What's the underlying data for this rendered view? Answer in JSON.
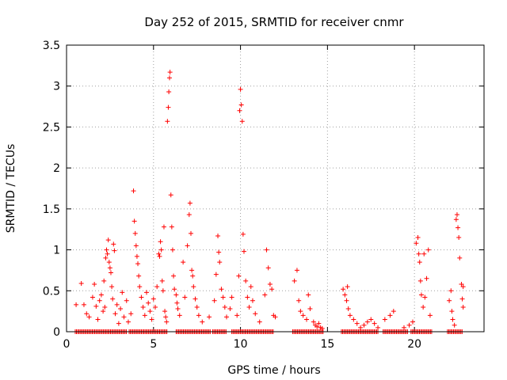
{
  "chart_data": {
    "type": "scatter",
    "title": "Day 252 of 2015, SRMTID for receiver cnmr",
    "xlabel": "GPS time / hours",
    "ylabel": "SRMTID / TECUs",
    "xlim": [
      0,
      24
    ],
    "ylim": [
      0,
      3.5
    ],
    "x_ticks": [
      0,
      5,
      10,
      15,
      20
    ],
    "y_ticks": [
      0,
      0.5,
      1,
      1.5,
      2,
      2.5,
      3,
      3.5
    ],
    "x_tick_labels": [
      "0",
      "5",
      "10",
      "15",
      "20"
    ],
    "y_tick_labels": [
      "0",
      "0.5",
      "1",
      "1.5",
      "2",
      "2.5",
      "3",
      "3.5"
    ],
    "grid": true,
    "marker": "plus",
    "color": "#ff0000",
    "series": [
      {
        "name": "SRMTID",
        "points": [
          [
            0.55,
            0.33
          ],
          [
            0.85,
            0.59
          ],
          [
            1.0,
            0.33
          ],
          [
            1.15,
            0.22
          ],
          [
            1.3,
            0.18
          ],
          [
            1.5,
            0.42
          ],
          [
            1.6,
            0.58
          ],
          [
            1.7,
            0.31
          ],
          [
            1.8,
            0.15
          ],
          [
            1.9,
            0.38
          ],
          [
            2.0,
            0.45
          ],
          [
            2.1,
            0.25
          ],
          [
            2.15,
            0.62
          ],
          [
            2.2,
            0.3
          ],
          [
            2.25,
            0.9
          ],
          [
            2.3,
            1.0
          ],
          [
            2.35,
            0.95
          ],
          [
            2.4,
            1.12
          ],
          [
            2.45,
            0.85
          ],
          [
            2.5,
            0.78
          ],
          [
            2.55,
            0.72
          ],
          [
            2.6,
            0.55
          ],
          [
            2.65,
            0.4
          ],
          [
            2.7,
            1.07
          ],
          [
            2.75,
            0.99
          ],
          [
            2.8,
            0.22
          ],
          [
            2.9,
            0.33
          ],
          [
            3.0,
            0.1
          ],
          [
            3.1,
            0.28
          ],
          [
            3.2,
            0.48
          ],
          [
            3.3,
            0.18
          ],
          [
            3.45,
            0.38
          ],
          [
            3.55,
            0.12
          ],
          [
            3.7,
            0.22
          ],
          [
            3.85,
            1.72
          ],
          [
            3.9,
            1.35
          ],
          [
            3.95,
            1.2
          ],
          [
            4.0,
            1.05
          ],
          [
            4.05,
            0.92
          ],
          [
            4.1,
            0.83
          ],
          [
            4.15,
            0.68
          ],
          [
            4.2,
            0.55
          ],
          [
            4.3,
            0.42
          ],
          [
            4.4,
            0.3
          ],
          [
            4.5,
            0.2
          ],
          [
            4.6,
            0.48
          ],
          [
            4.7,
            0.35
          ],
          [
            4.8,
            0.25
          ],
          [
            4.9,
            0.15
          ],
          [
            5.0,
            0.4
          ],
          [
            5.1,
            0.3
          ],
          [
            5.2,
            0.55
          ],
          [
            5.3,
            0.95
          ],
          [
            5.35,
            0.92
          ],
          [
            5.4,
            1.1
          ],
          [
            5.45,
            1.0
          ],
          [
            5.5,
            0.62
          ],
          [
            5.55,
            0.5
          ],
          [
            5.6,
            1.28
          ],
          [
            5.65,
            0.25
          ],
          [
            5.7,
            0.18
          ],
          [
            5.75,
            0.12
          ],
          [
            5.8,
            2.57
          ],
          [
            5.85,
            2.74
          ],
          [
            5.88,
            2.93
          ],
          [
            5.92,
            3.1
          ],
          [
            5.95,
            3.17
          ],
          [
            6.0,
            1.67
          ],
          [
            6.05,
            1.28
          ],
          [
            6.1,
            1.0
          ],
          [
            6.15,
            0.68
          ],
          [
            6.2,
            0.52
          ],
          [
            6.3,
            0.45
          ],
          [
            6.35,
            0.35
          ],
          [
            6.4,
            0.28
          ],
          [
            6.5,
            0.2
          ],
          [
            6.7,
            0.85
          ],
          [
            6.8,
            0.42
          ],
          [
            6.95,
            1.05
          ],
          [
            7.05,
            1.43
          ],
          [
            7.1,
            1.57
          ],
          [
            7.15,
            1.2
          ],
          [
            7.2,
            0.75
          ],
          [
            7.25,
            0.68
          ],
          [
            7.3,
            0.55
          ],
          [
            7.4,
            0.4
          ],
          [
            7.5,
            0.3
          ],
          [
            7.6,
            0.2
          ],
          [
            7.8,
            0.12
          ],
          [
            8.2,
            0.18
          ],
          [
            8.5,
            0.38
          ],
          [
            8.6,
            0.7
          ],
          [
            8.7,
            1.17
          ],
          [
            8.75,
            0.97
          ],
          [
            8.8,
            0.85
          ],
          [
            8.9,
            0.52
          ],
          [
            9.0,
            0.42
          ],
          [
            9.1,
            0.3
          ],
          [
            9.2,
            0.18
          ],
          [
            9.4,
            0.28
          ],
          [
            9.5,
            0.42
          ],
          [
            9.8,
            0.2
          ],
          [
            9.9,
            0.68
          ],
          [
            9.95,
            2.7
          ],
          [
            10.0,
            2.96
          ],
          [
            10.05,
            2.77
          ],
          [
            10.1,
            2.57
          ],
          [
            10.15,
            1.19
          ],
          [
            10.2,
            0.98
          ],
          [
            10.3,
            0.62
          ],
          [
            10.4,
            0.42
          ],
          [
            10.5,
            0.3
          ],
          [
            10.6,
            0.55
          ],
          [
            10.7,
            0.38
          ],
          [
            10.85,
            0.22
          ],
          [
            11.1,
            0.12
          ],
          [
            11.4,
            0.45
          ],
          [
            11.5,
            1.0
          ],
          [
            11.6,
            0.78
          ],
          [
            11.7,
            0.58
          ],
          [
            11.8,
            0.52
          ],
          [
            11.9,
            0.2
          ],
          [
            12.0,
            0.18
          ],
          [
            13.1,
            0.62
          ],
          [
            13.25,
            0.75
          ],
          [
            13.35,
            0.38
          ],
          [
            13.45,
            0.25
          ],
          [
            13.6,
            0.2
          ],
          [
            13.8,
            0.15
          ],
          [
            13.9,
            0.45
          ],
          [
            14.0,
            0.28
          ],
          [
            14.2,
            0.12
          ],
          [
            14.3,
            0.08
          ],
          [
            14.4,
            0.06
          ],
          [
            14.5,
            0.1
          ],
          [
            14.6,
            0.05
          ],
          [
            14.7,
            0.04
          ],
          [
            15.9,
            0.52
          ],
          [
            16.0,
            0.45
          ],
          [
            16.1,
            0.38
          ],
          [
            16.15,
            0.55
          ],
          [
            16.2,
            0.28
          ],
          [
            16.3,
            0.2
          ],
          [
            16.5,
            0.15
          ],
          [
            16.7,
            0.1
          ],
          [
            16.9,
            0.05
          ],
          [
            17.1,
            0.08
          ],
          [
            17.3,
            0.12
          ],
          [
            17.5,
            0.15
          ],
          [
            17.7,
            0.1
          ],
          [
            17.9,
            0.05
          ],
          [
            18.3,
            0.15
          ],
          [
            18.6,
            0.2
          ],
          [
            18.8,
            0.25
          ],
          [
            19.4,
            0.05
          ],
          [
            19.7,
            0.08
          ],
          [
            19.9,
            0.12
          ],
          [
            20.1,
            1.08
          ],
          [
            20.2,
            1.15
          ],
          [
            20.25,
            0.95
          ],
          [
            20.3,
            0.85
          ],
          [
            20.35,
            0.62
          ],
          [
            20.4,
            0.45
          ],
          [
            20.5,
            0.3
          ],
          [
            20.55,
            0.95
          ],
          [
            20.6,
            0.42
          ],
          [
            20.7,
            0.65
          ],
          [
            20.8,
            1.0
          ],
          [
            20.9,
            0.2
          ],
          [
            22.0,
            0.38
          ],
          [
            22.1,
            0.5
          ],
          [
            22.15,
            0.25
          ],
          [
            22.2,
            0.15
          ],
          [
            22.3,
            0.08
          ],
          [
            22.4,
            1.37
          ],
          [
            22.45,
            1.43
          ],
          [
            22.5,
            1.27
          ],
          [
            22.55,
            1.15
          ],
          [
            22.6,
            0.9
          ],
          [
            22.7,
            0.58
          ],
          [
            22.75,
            0.4
          ],
          [
            22.8,
            0.3
          ],
          [
            22.8,
            0.55
          ]
        ],
        "zero_runs": [
          [
            0.5,
            3.5
          ],
          [
            3.6,
            5.8
          ],
          [
            6.3,
            8.3
          ],
          [
            8.4,
            9.2
          ],
          [
            9.5,
            11.9
          ],
          [
            13.0,
            14.8
          ],
          [
            15.8,
            17.9
          ],
          [
            18.2,
            19.6
          ],
          [
            19.8,
            21.0
          ],
          [
            21.9,
            22.8
          ]
        ]
      }
    ]
  }
}
